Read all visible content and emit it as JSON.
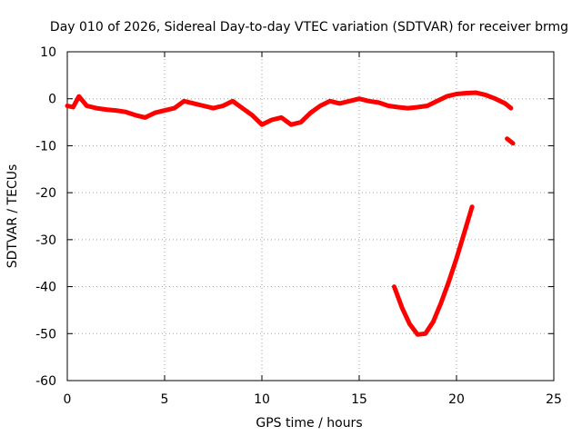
{
  "chart_data": {
    "type": "line",
    "title": "Day 010 of 2026, Sidereal Day-to-day VTEC variation (SDTVAR) for receiver brmg",
    "xlabel": "GPS time / hours",
    "ylabel": "SDTVAR / TECUs",
    "xlim": [
      0,
      25
    ],
    "ylim": [
      -60,
      10
    ],
    "xticks": [
      "0",
      "5",
      "10",
      "15",
      "20",
      "25"
    ],
    "yticks": [
      "10",
      "0",
      "-10",
      "-20",
      "-30",
      "-40",
      "-50",
      "-60"
    ],
    "grid": true,
    "color": "#ff0000",
    "series": [
      {
        "name": "main-trace",
        "x": [
          0.0,
          0.3,
          0.6,
          1.0,
          1.5,
          2.0,
          2.5,
          3.0,
          3.5,
          4.0,
          4.5,
          5.0,
          5.5,
          6.0,
          6.5,
          7.0,
          7.5,
          8.0,
          8.5,
          9.0,
          9.5,
          10.0,
          10.5,
          11.0,
          11.5,
          12.0,
          12.5,
          13.0,
          13.5,
          14.0,
          14.5,
          15.0,
          15.5,
          16.0,
          16.5,
          17.0,
          17.5,
          18.0,
          18.5,
          19.0,
          19.5,
          20.0,
          20.5,
          21.0,
          21.5,
          22.0,
          22.5,
          22.8
        ],
        "y": [
          -1.5,
          -1.8,
          0.5,
          -1.5,
          -2.0,
          -2.3,
          -2.5,
          -2.8,
          -3.5,
          -4.0,
          -3.0,
          -2.5,
          -2.0,
          -0.5,
          -1.0,
          -1.5,
          -2.0,
          -1.5,
          -0.5,
          -2.0,
          -3.5,
          -5.5,
          -4.5,
          -4.0,
          -5.5,
          -5.0,
          -3.0,
          -1.5,
          -0.5,
          -1.0,
          -0.5,
          0.0,
          -0.5,
          -0.8,
          -1.5,
          -1.8,
          -2.0,
          -1.8,
          -1.5,
          -0.5,
          0.5,
          1.0,
          1.2,
          1.3,
          0.8,
          0.0,
          -1.0,
          -2.0
        ]
      },
      {
        "name": "tail-segment",
        "x": [
          22.6,
          22.9
        ],
        "y": [
          -8.5,
          -9.5
        ]
      },
      {
        "name": "dip-curve",
        "x": [
          16.8,
          17.2,
          17.6,
          18.0,
          18.4,
          18.8,
          19.2,
          19.6,
          20.0,
          20.4,
          20.8
        ],
        "y": [
          -40.0,
          -44.5,
          -48.0,
          -50.2,
          -50.0,
          -47.5,
          -43.5,
          -39.0,
          -34.0,
          -28.5,
          -23.0
        ]
      }
    ]
  }
}
